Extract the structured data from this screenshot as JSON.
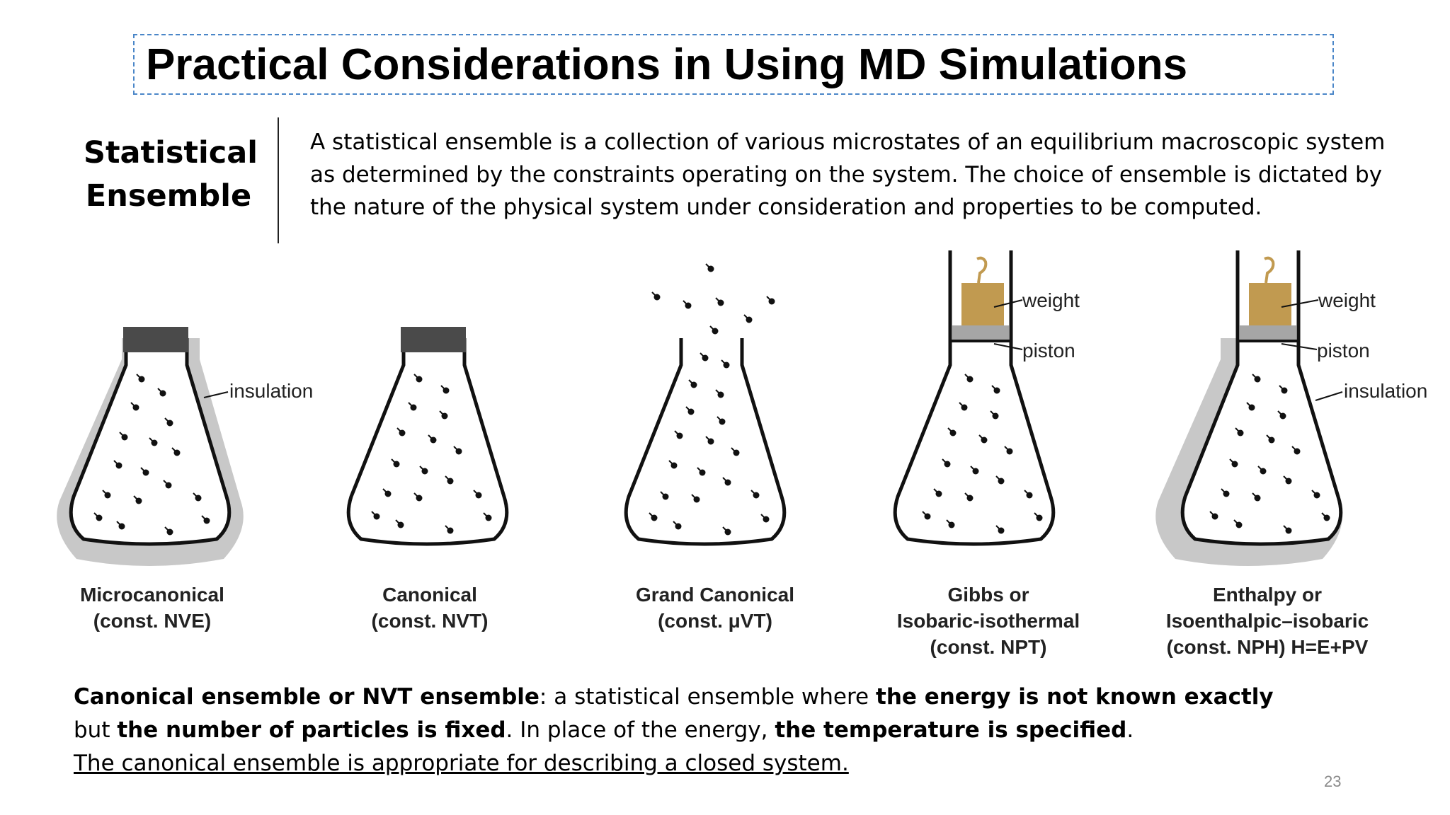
{
  "title": "Practical Considerations in Using MD Simulations",
  "term": {
    "line1": "Statistical",
    "line2": "Ensemble"
  },
  "definition": {
    "line1": "A statistical ensemble is a collection of various microstates of an equilibrium macroscopic system",
    "line2": "as determined by the constraints operating on the system. The choice of ensemble is dictated by",
    "line3": "the nature of the physical system under consideration and properties to be computed."
  },
  "figure": {
    "labels": {
      "insulation": "insulation",
      "weight": "weight",
      "piston": "piston"
    },
    "ensembles": [
      {
        "name": "Microcanonical",
        "constraint": "(const. NVE)"
      },
      {
        "name": "Canonical",
        "constraint": "(const. NVT)"
      },
      {
        "name": "Grand Canonical",
        "constraint": "(const. μVT)"
      },
      {
        "name": "Gibbs or",
        "name2": "Isobaric-isothermal",
        "constraint": "(const. NPT)"
      },
      {
        "name": "Enthalpy or",
        "name2": "Isoenthalpic–isobaric",
        "constraint": "(const. NPH) H=E+PV"
      }
    ],
    "colors": {
      "insulation": "#c8c8c8",
      "stopper": "#4a4a4a",
      "weight": "#c19a50",
      "piston": "#a6a6a6",
      "outline": "#111111"
    }
  },
  "bottom": {
    "b1": "Canonical ensemble or NVT ensemble",
    "t1": ": a statistical ensemble where ",
    "b2": "the energy is not known exactly",
    "t2": "but ",
    "b3": "the number of particles is fixed",
    "t3": ". In place of the energy, ",
    "b4": "the temperature is specified",
    "t4": ".",
    "underline": "The canonical ensemble is appropriate for describing a closed system."
  },
  "page_number": "23"
}
